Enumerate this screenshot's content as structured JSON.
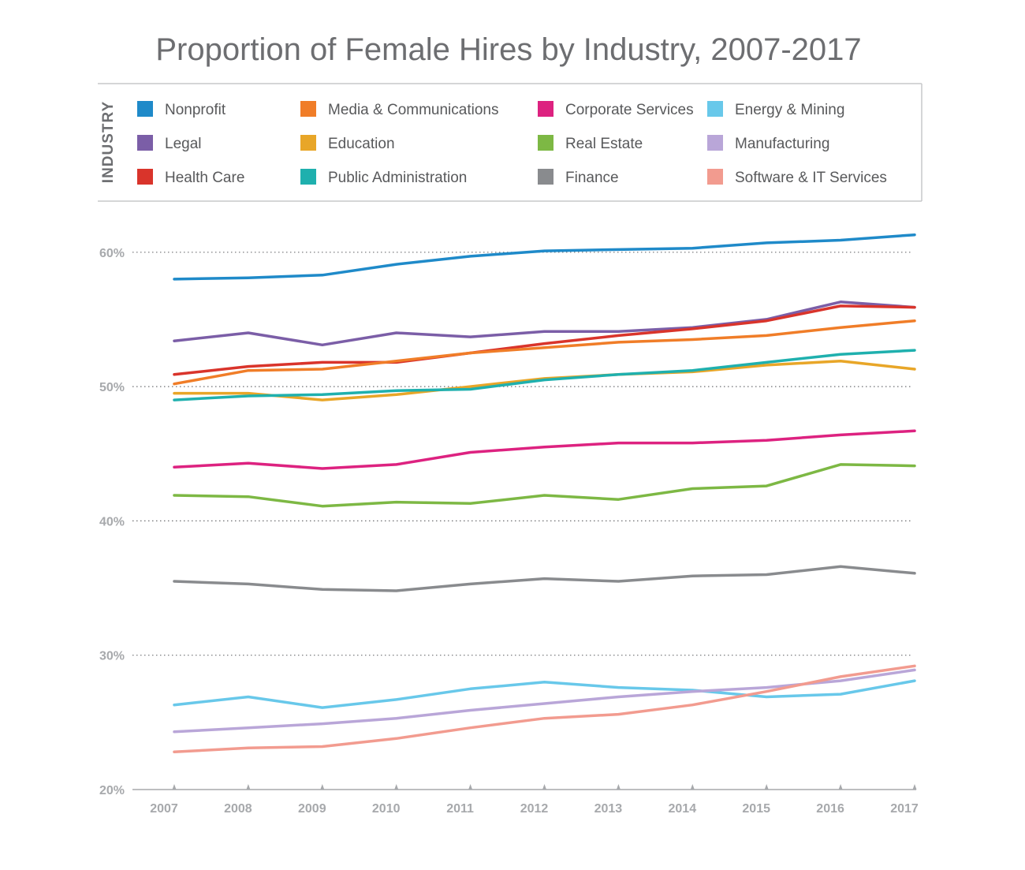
{
  "chart_data": {
    "type": "line",
    "title": "Proportion of Female Hires by Industry, 2007-2017",
    "legend_title": "INDUSTRY",
    "legend_position": "top",
    "xlabel": "",
    "ylabel": "",
    "x": [
      "2007",
      "2008",
      "2009",
      "2010",
      "2011",
      "2012",
      "2013",
      "2014",
      "2015",
      "2016",
      "2017"
    ],
    "ylim": [
      20,
      62
    ],
    "y_ticks": [
      20,
      30,
      40,
      50,
      60
    ],
    "y_tick_labels": [
      "20%",
      "30%",
      "40%",
      "50%",
      "60%"
    ],
    "grid": "dotted horizontal at 30%, 40%, 50%, 60%",
    "series": [
      {
        "name": "Nonprofit",
        "color": "#1f8ac9",
        "values": [
          58.0,
          58.1,
          58.3,
          59.1,
          59.7,
          60.1,
          60.2,
          60.3,
          60.7,
          60.9,
          61.3
        ]
      },
      {
        "name": "Legal",
        "color": "#7b5ea7",
        "values": [
          53.4,
          54.0,
          53.1,
          54.0,
          53.7,
          54.1,
          54.1,
          54.4,
          55.0,
          56.3,
          55.9
        ]
      },
      {
        "name": "Health Care",
        "color": "#d9342b",
        "values": [
          50.9,
          51.5,
          51.8,
          51.8,
          52.5,
          53.2,
          53.8,
          54.3,
          54.9,
          56.0,
          55.9
        ]
      },
      {
        "name": "Media & Communications",
        "color": "#f07d28",
        "values": [
          50.2,
          51.2,
          51.3,
          51.9,
          52.5,
          52.9,
          53.3,
          53.5,
          53.8,
          54.4,
          54.9
        ]
      },
      {
        "name": "Education",
        "color": "#e8a628",
        "values": [
          49.5,
          49.5,
          49.0,
          49.4,
          50.0,
          50.6,
          50.9,
          51.1,
          51.6,
          51.9,
          51.3
        ]
      },
      {
        "name": "Public Administration",
        "color": "#1fb0ae",
        "values": [
          49.0,
          49.3,
          49.4,
          49.7,
          49.8,
          50.5,
          50.9,
          51.2,
          51.8,
          52.4,
          52.7
        ]
      },
      {
        "name": "Corporate Services",
        "color": "#dd2280",
        "values": [
          44.0,
          44.3,
          43.9,
          44.2,
          45.1,
          45.5,
          45.8,
          45.8,
          46.0,
          46.4,
          46.7
        ]
      },
      {
        "name": "Real Estate",
        "color": "#7db844",
        "values": [
          41.9,
          41.8,
          41.1,
          41.4,
          41.3,
          41.9,
          41.6,
          42.4,
          42.6,
          44.2,
          44.1
        ]
      },
      {
        "name": "Finance",
        "color": "#898b8e",
        "values": [
          35.5,
          35.3,
          34.9,
          34.8,
          35.3,
          35.7,
          35.5,
          35.9,
          36.0,
          36.6,
          36.1
        ]
      },
      {
        "name": "Energy & Mining",
        "color": "#68c8ea",
        "values": [
          26.3,
          26.9,
          26.1,
          26.7,
          27.5,
          28.0,
          27.6,
          27.4,
          26.9,
          27.1,
          28.1
        ]
      },
      {
        "name": "Manufacturing",
        "color": "#b9a6d8",
        "values": [
          24.3,
          24.6,
          24.9,
          25.3,
          25.9,
          26.4,
          26.9,
          27.3,
          27.6,
          28.1,
          28.9
        ]
      },
      {
        "name": "Software & IT Services",
        "color": "#f29b8f",
        "values": [
          22.8,
          23.1,
          23.2,
          23.8,
          24.6,
          25.3,
          25.6,
          26.3,
          27.3,
          28.4,
          29.2
        ]
      }
    ]
  }
}
